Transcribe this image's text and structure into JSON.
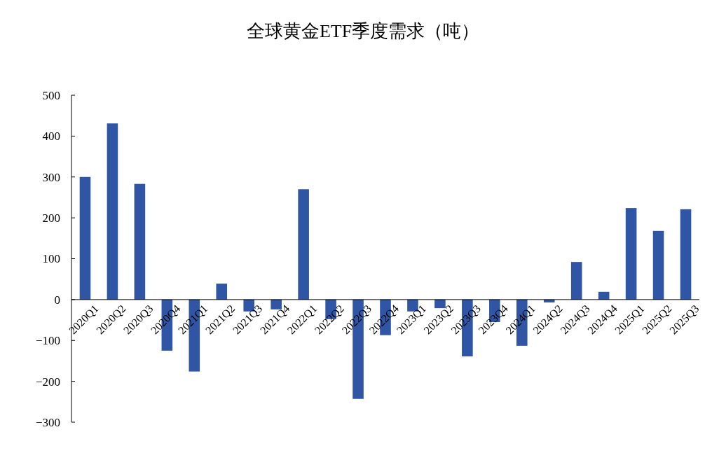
{
  "chart_data": {
    "type": "bar",
    "title": "全球黄金ETF季度需求（吨）",
    "categories": [
      "2020Q1",
      "2020Q2",
      "2020Q3",
      "2020Q4",
      "2021Q1",
      "2021Q2",
      "2021Q3",
      "2021Q4",
      "2022Q1",
      "2022Q2",
      "2022Q3",
      "2022Q4",
      "2023Q1",
      "2023Q2",
      "2023Q3",
      "2023Q4",
      "2024Q1",
      "2024Q2",
      "2024Q3",
      "2024Q4",
      "2025Q1",
      "2025Q2",
      "2025Q3"
    ],
    "values": [
      300,
      431,
      283,
      -125,
      -176,
      39,
      -29,
      -24,
      270,
      -48,
      -243,
      -87,
      -29,
      -21,
      -139,
      -55,
      -113,
      -7,
      92,
      19,
      224,
      168,
      221
    ],
    "color": "#2f55a4",
    "ylim": [
      -300,
      500
    ],
    "yticks": [
      {
        "value": -300,
        "label": "−300"
      },
      {
        "value": -200,
        "label": "−200"
      },
      {
        "value": -100,
        "label": "−100"
      },
      0,
      100,
      200,
      300,
      400,
      500
    ],
    "grid": false
  }
}
